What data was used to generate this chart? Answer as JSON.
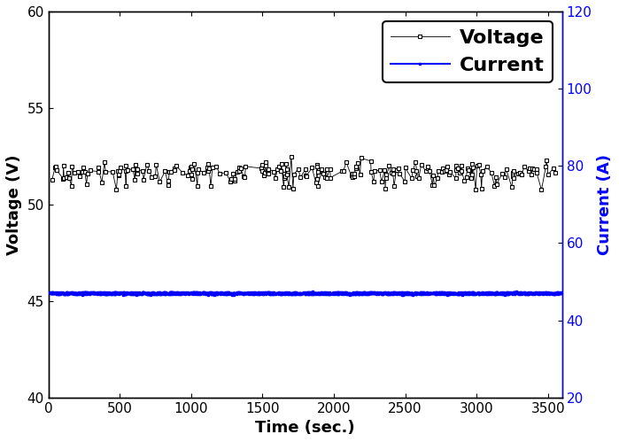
{
  "title": "",
  "xlabel": "Time (sec.)",
  "ylabel_left": "Voltage (V)",
  "ylabel_right": "Current (A)",
  "xlim": [
    0,
    3600
  ],
  "ylim_left": [
    40,
    60
  ],
  "ylim_right": [
    20,
    120
  ],
  "xticks": [
    0,
    500,
    1000,
    1500,
    2000,
    2500,
    3000,
    3500
  ],
  "yticks_left": [
    40,
    45,
    50,
    55,
    60
  ],
  "yticks_right": [
    20,
    40,
    60,
    80,
    100,
    120
  ],
  "voltage_mean": 51.7,
  "current_mean": 47.0,
  "voltage_color": "black",
  "current_color": "blue",
  "legend_voltage": "Voltage",
  "legend_current": "Current",
  "background_color": "white",
  "legend_fontsize": 16,
  "axis_label_fontsize": 13,
  "tick_fontsize": 11,
  "right_tick_color": "blue",
  "right_label_color": "blue",
  "right_spine_color": "blue"
}
